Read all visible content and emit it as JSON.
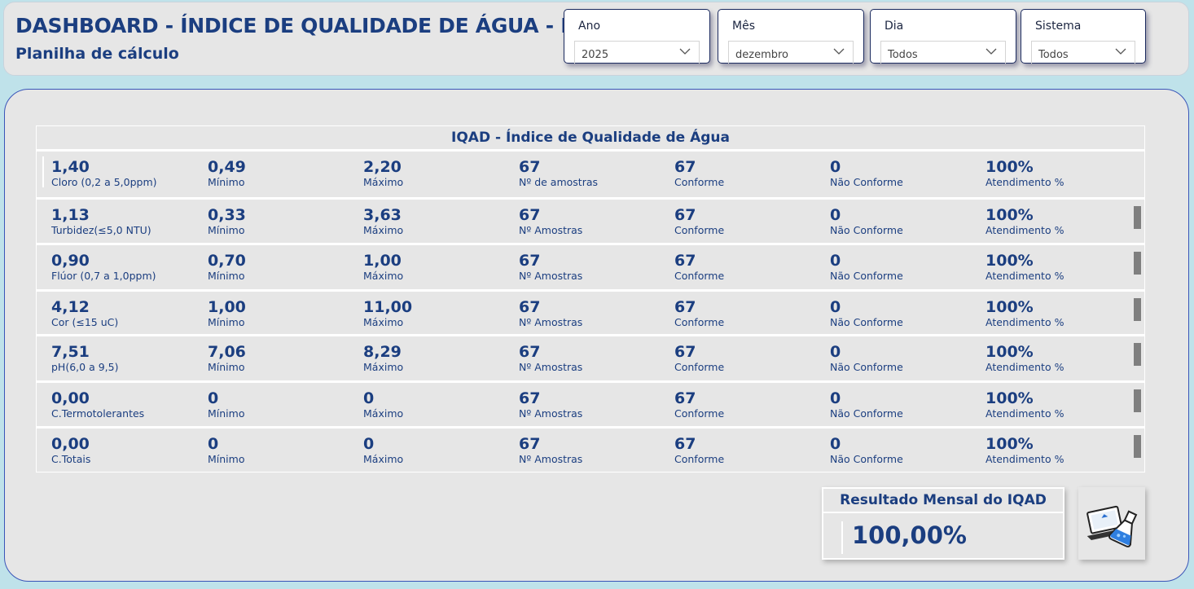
{
  "header": {
    "title": "DASHBOARD - ÍNDICE DE QUALIDADE DE ÁGUA - IQA",
    "subtitle": "Planilha de cálculo"
  },
  "filters": [
    {
      "label": "Ano",
      "value": "2025"
    },
    {
      "label": "Mês",
      "value": "dezembro"
    },
    {
      "label": "Dia",
      "value": "Todos"
    },
    {
      "label": "Sistema",
      "value": "Todos"
    }
  ],
  "table": {
    "title": "IQAD - Índice de Qualidade de Água",
    "rows": [
      {
        "param": {
          "value": "1,40",
          "label": "Cloro (0,2 a 5,0ppm)"
        },
        "min": {
          "value": "0,49",
          "label": "Mínimo"
        },
        "max": {
          "value": "2,20",
          "label": "Máximo"
        },
        "samples": {
          "value": "67",
          "label": "Nº de amostras"
        },
        "conform": {
          "value": "67",
          "label": "Conforme"
        },
        "nonconform": {
          "value": "0",
          "label": "Não Conforme"
        },
        "attend": {
          "value": "100%",
          "label": "Atendimento %"
        }
      },
      {
        "param": {
          "value": "1,13",
          "label": "Turbidez(≤5,0 NTU)"
        },
        "min": {
          "value": "0,33",
          "label": "Mínimo"
        },
        "max": {
          "value": "3,63",
          "label": "Máximo"
        },
        "samples": {
          "value": "67",
          "label": "Nº Amostras"
        },
        "conform": {
          "value": "67",
          "label": "Conforme"
        },
        "nonconform": {
          "value": "0",
          "label": "Não Conforme"
        },
        "attend": {
          "value": "100%",
          "label": "Atendimento %"
        }
      },
      {
        "param": {
          "value": "0,90",
          "label": "Flúor (0,7 a 1,0ppm)"
        },
        "min": {
          "value": "0,70",
          "label": "Mínimo"
        },
        "max": {
          "value": "1,00",
          "label": "Máximo"
        },
        "samples": {
          "value": "67",
          "label": "Nº Amostras"
        },
        "conform": {
          "value": "67",
          "label": "Conforme"
        },
        "nonconform": {
          "value": "0",
          "label": "Não Conforme"
        },
        "attend": {
          "value": "100%",
          "label": "Atendimento %"
        }
      },
      {
        "param": {
          "value": "4,12",
          "label": "Cor (≤15 uC)"
        },
        "min": {
          "value": "1,00",
          "label": "Mínimo"
        },
        "max": {
          "value": "11,00",
          "label": "Máximo"
        },
        "samples": {
          "value": "67",
          "label": "Nº Amostras"
        },
        "conform": {
          "value": "67",
          "label": "Conforme"
        },
        "nonconform": {
          "value": "0",
          "label": "Não Conforme"
        },
        "attend": {
          "value": "100%",
          "label": "Atendimento %"
        }
      },
      {
        "param": {
          "value": "7,51",
          "label": "pH(6,0 a 9,5)"
        },
        "min": {
          "value": "7,06",
          "label": "Mínimo"
        },
        "max": {
          "value": "8,29",
          "label": "Máximo"
        },
        "samples": {
          "value": "67",
          "label": "Nº Amostras"
        },
        "conform": {
          "value": "67",
          "label": "Conforme"
        },
        "nonconform": {
          "value": "0",
          "label": "Não Conforme"
        },
        "attend": {
          "value": "100%",
          "label": "Atendimento %"
        }
      },
      {
        "param": {
          "value": "0,00",
          "label": "C.Termotolerantes"
        },
        "min": {
          "value": "0",
          "label": "Mínimo"
        },
        "max": {
          "value": "0",
          "label": "Máximo"
        },
        "samples": {
          "value": "67",
          "label": "Nº Amostras"
        },
        "conform": {
          "value": "67",
          "label": "Conforme"
        },
        "nonconform": {
          "value": "0",
          "label": "Não Conforme"
        },
        "attend": {
          "value": "100%",
          "label": "Atendimento %"
        }
      },
      {
        "param": {
          "value": "0,00",
          "label": "C.Totais"
        },
        "min": {
          "value": "0",
          "label": "Mínimo"
        },
        "max": {
          "value": "0",
          "label": "Máximo"
        },
        "samples": {
          "value": "67",
          "label": "Nº Amostras"
        },
        "conform": {
          "value": "67",
          "label": "Conforme"
        },
        "nonconform": {
          "value": "0",
          "label": "Não Conforme"
        },
        "attend": {
          "value": "100%",
          "label": "Atendimento %"
        }
      }
    ]
  },
  "result": {
    "title": "Resultado Mensal do IQAD",
    "value": "100,00%"
  },
  "icons": {
    "dropdown": "chevron-down-icon",
    "lab": "laptop-flask-icon",
    "scroll": "scroll-bar-indicator"
  },
  "colors": {
    "primary_text": "#1b3e80",
    "background": "#bfe2ea",
    "panel": "#e6e6e6",
    "panel_border": "#3a55b8",
    "indicator_bar": "#7f7f7f"
  }
}
